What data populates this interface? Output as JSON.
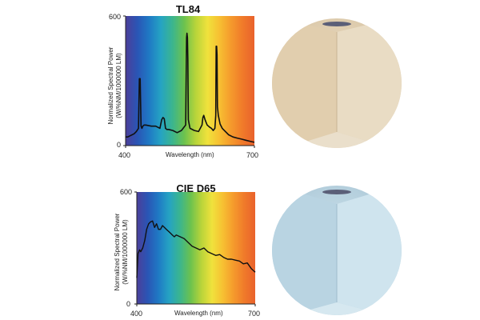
{
  "chart_data": [
    {
      "type": "line",
      "title": "TL84",
      "xlabel": "Wavelength (nm)",
      "ylabel": "Normalized Spectral Power",
      "ylabel_units": "(W/%NM/1000000 LM)",
      "xlim": [
        400,
        700
      ],
      "ylim": [
        0,
        600
      ],
      "x_ticks": [
        "400",
        "700"
      ],
      "y_ticks": [
        "0",
        "600"
      ],
      "series": [
        {
          "x": [
            400,
            405,
            410,
            415,
            420,
            425,
            430,
            432,
            434,
            436,
            438,
            440,
            443,
            447,
            460,
            470,
            480,
            484,
            487,
            490,
            493,
            496,
            500,
            510,
            520,
            530,
            540,
            542,
            543,
            544,
            545,
            546,
            548,
            550,
            560,
            570,
            578,
            580,
            582,
            585,
            588,
            590,
            593,
            596,
            600,
            604,
            608,
            610,
            611,
            612,
            613,
            614,
            616,
            620,
            625,
            630,
            640,
            650,
            660,
            670,
            680,
            690,
            700
          ],
          "values": [
            40,
            40,
            45,
            50,
            55,
            65,
            80,
            310,
            310,
            90,
            80,
            90,
            95,
            95,
            90,
            90,
            80,
            120,
            130,
            125,
            80,
            75,
            75,
            70,
            60,
            70,
            95,
            500,
            520,
            500,
            400,
            120,
            100,
            80,
            70,
            65,
            95,
            130,
            140,
            120,
            105,
            95,
            90,
            85,
            80,
            70,
            80,
            140,
            460,
            460,
            420,
            180,
            140,
            100,
            80,
            70,
            50,
            40,
            35,
            30,
            25,
            20,
            15
          ]
        }
      ]
    },
    {
      "type": "line",
      "title": "CIE D65",
      "xlabel": "Wavelength (nm)",
      "ylabel": "Normalized Spectral Power",
      "ylabel_units": "(W/%NM/1000000 LM)",
      "xlim": [
        400,
        700
      ],
      "ylim": [
        0,
        600
      ],
      "x_ticks": [
        "400",
        "700"
      ],
      "y_ticks": [
        "0",
        "600"
      ],
      "series": [
        {
          "x": [
            400,
            403,
            407,
            410,
            415,
            420,
            425,
            430,
            435,
            440,
            445,
            450,
            455,
            460,
            465,
            470,
            475,
            480,
            485,
            490,
            495,
            500,
            510,
            520,
            530,
            540,
            550,
            560,
            570,
            580,
            590,
            600,
            610,
            620,
            630,
            640,
            650,
            660,
            670,
            680,
            690,
            700
          ],
          "values": [
            140,
            270,
            290,
            280,
            300,
            340,
            400,
            430,
            440,
            445,
            410,
            430,
            400,
            400,
            420,
            410,
            400,
            390,
            380,
            370,
            360,
            370,
            360,
            350,
            330,
            310,
            300,
            290,
            300,
            280,
            270,
            260,
            265,
            250,
            240,
            240,
            235,
            230,
            215,
            220,
            190,
            170
          ]
        }
      ]
    }
  ],
  "colors": {
    "spectrum": [
      "#4c3f9a",
      "#2a55b5",
      "#1f79c4",
      "#25a3c3",
      "#3bb58e",
      "#6cc24e",
      "#b8d43a",
      "#f0e23c",
      "#f7c032",
      "#f59a2c",
      "#f07a2a",
      "#e9622c"
    ],
    "line": "#111111",
    "room_warm": "#e5d6bd",
    "room_cool": "#c4dde9"
  },
  "illustrations": [
    "room-corner-warm-light",
    "room-corner-cool-light"
  ]
}
